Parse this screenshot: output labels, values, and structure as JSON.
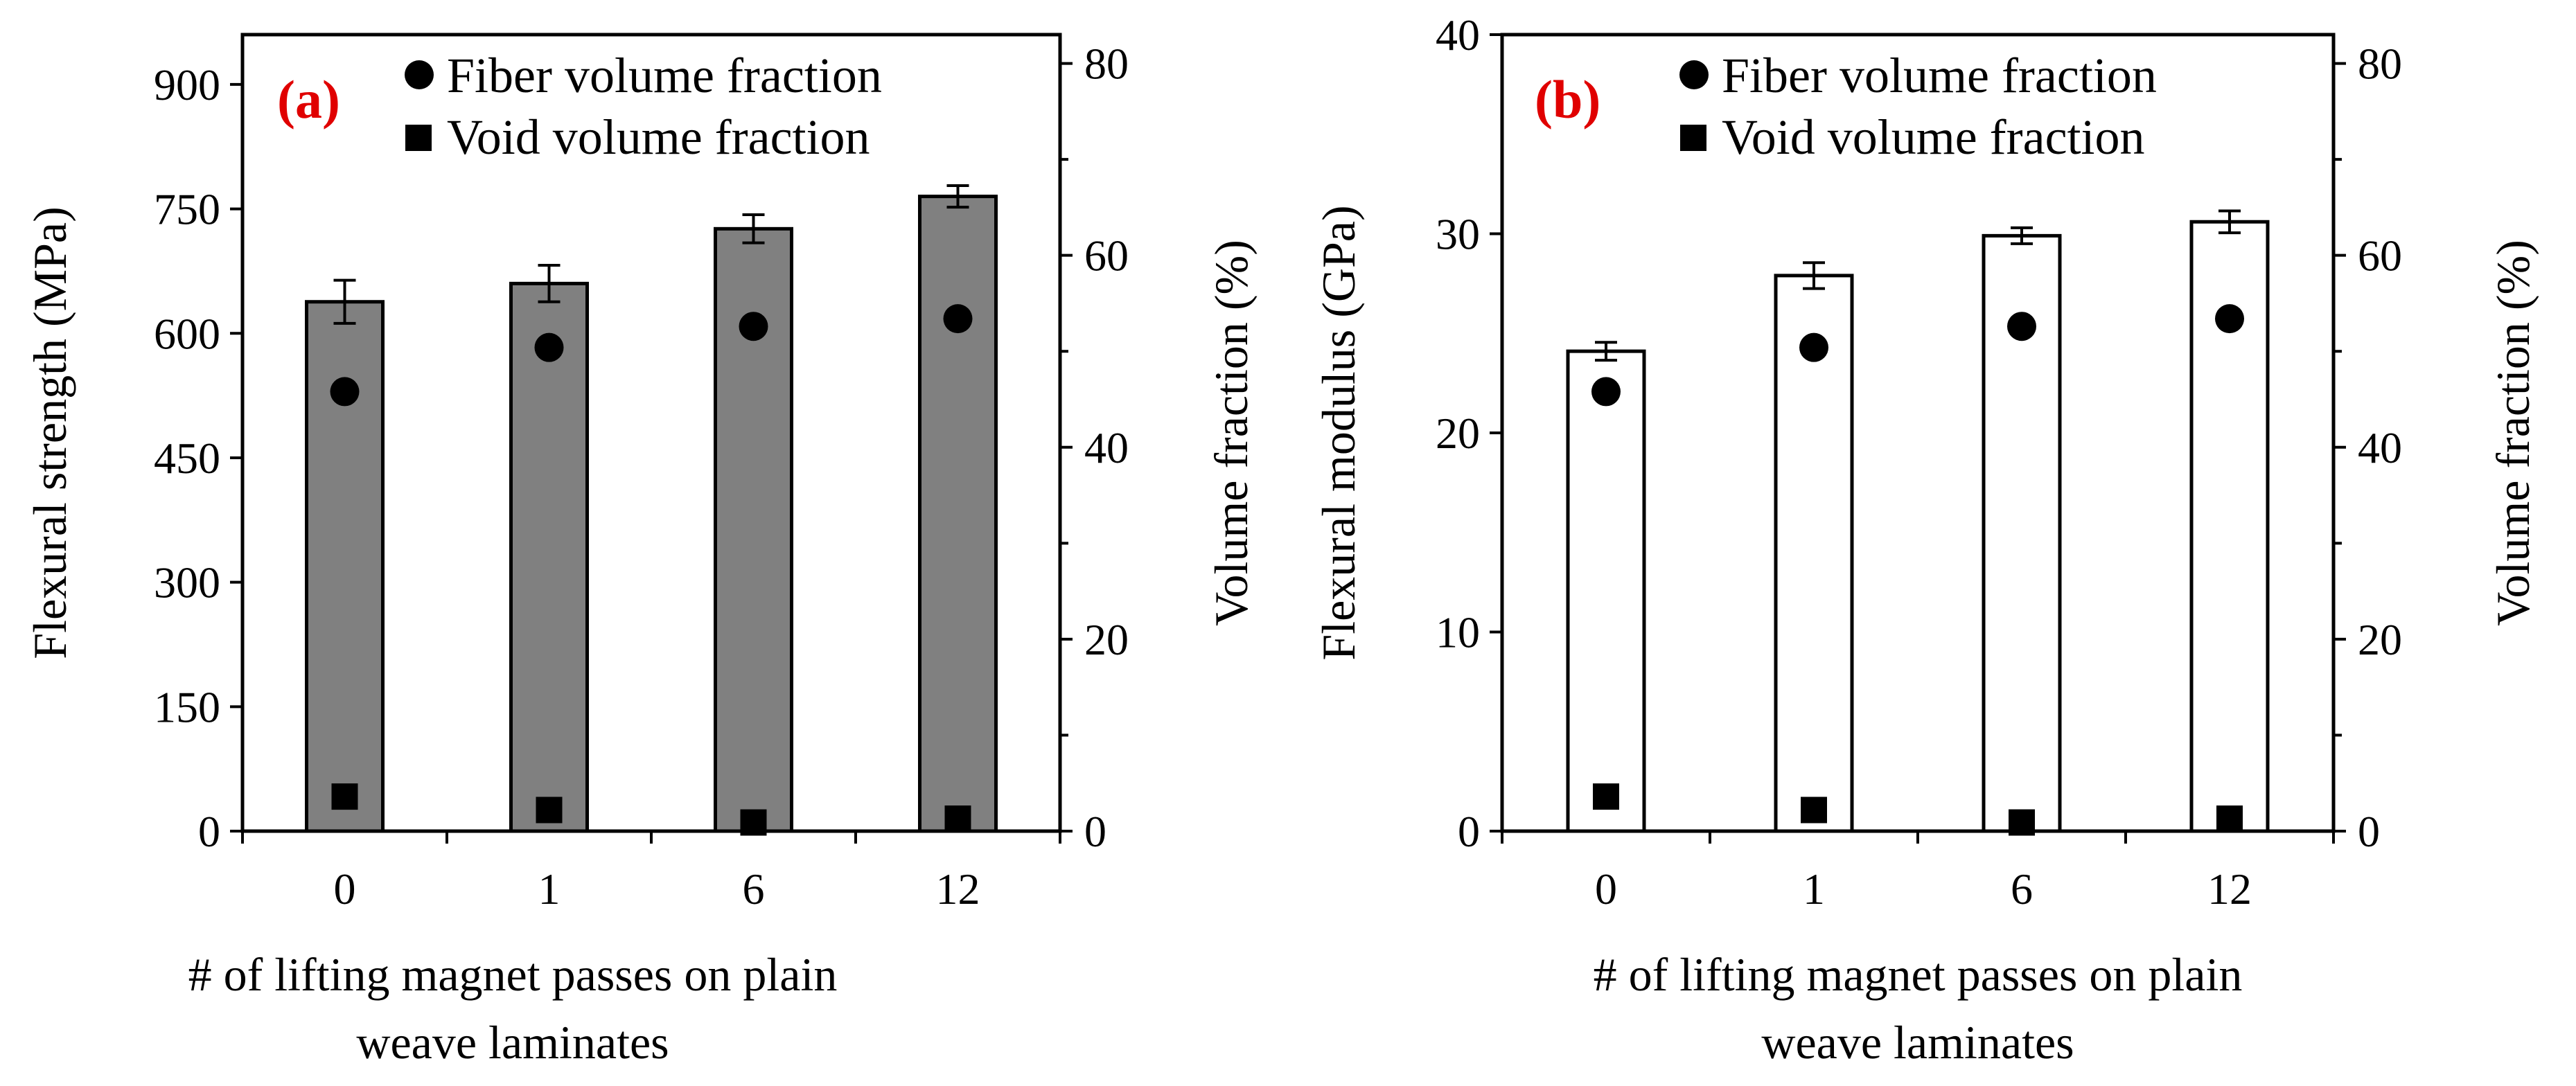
{
  "chart_data": [
    {
      "type": "bar",
      "panel_label": "(a)",
      "categories": [
        "0",
        "1",
        "6",
        "12"
      ],
      "bar_color": "#808080",
      "primary": {
        "name": "Flexural strength",
        "values": [
          638,
          660,
          726,
          765
        ],
        "errors": [
          26,
          22,
          17,
          13
        ]
      },
      "secondary_series": [
        {
          "name": "Fiber volume fraction",
          "marker": "circle",
          "values": [
            45.8,
            50.4,
            52.6,
            53.4
          ]
        },
        {
          "name": "Void volume fraction",
          "marker": "square",
          "values": [
            3.6,
            2.2,
            0.9,
            1.3
          ]
        }
      ],
      "ylabel": "Flexural strength (MPa)",
      "ylim": [
        0,
        960
      ],
      "yticks": [
        "0",
        "150",
        "300",
        "450",
        "600",
        "750",
        "900"
      ],
      "ytick_values": [
        0,
        150,
        300,
        450,
        600,
        750,
        900
      ],
      "y2label": "Volume fraction (%)",
      "y2lim": [
        0,
        83
      ],
      "y2ticks": [
        "0",
        "20",
        "40",
        "60",
        "80"
      ],
      "y2tick_values": [
        0,
        20,
        40,
        60,
        80
      ],
      "xlabel_line1": "# of lifting magnet passes on plain",
      "xlabel_line2": "weave laminates",
      "legend": [
        "Fiber volume fraction",
        "Void volume fraction"
      ]
    },
    {
      "type": "bar",
      "panel_label": "(b)",
      "categories": [
        "0",
        "1",
        "6",
        "12"
      ],
      "bar_color": "#ffffff",
      "primary": {
        "name": "Flexural modulus",
        "values": [
          24.1,
          27.9,
          29.9,
          30.6
        ],
        "errors": [
          0.45,
          0.65,
          0.4,
          0.55
        ]
      },
      "secondary_series": [
        {
          "name": "Fiber volume fraction",
          "marker": "circle",
          "values": [
            45.8,
            50.4,
            52.6,
            53.4
          ]
        },
        {
          "name": "Void volume fraction",
          "marker": "square",
          "values": [
            3.6,
            2.2,
            0.9,
            1.3
          ]
        }
      ],
      "ylabel": "Flexural modulus (GPa)",
      "ylim": [
        0,
        40
      ],
      "yticks": [
        "0",
        "10",
        "20",
        "30",
        "40"
      ],
      "ytick_values": [
        0,
        10,
        20,
        30,
        40
      ],
      "y2label": "Volume fraction (%)",
      "y2lim": [
        0,
        83
      ],
      "y2ticks": [
        "0",
        "20",
        "40",
        "60",
        "80"
      ],
      "y2tick_values": [
        0,
        20,
        40,
        60,
        80
      ],
      "xlabel_line1": "# of lifting magnet passes on plain",
      "xlabel_line2": "weave laminates",
      "legend": [
        "Fiber volume fraction",
        "Void volume fraction"
      ]
    }
  ]
}
